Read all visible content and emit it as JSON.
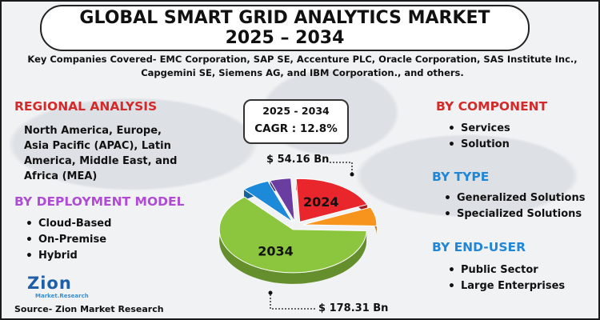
{
  "title": {
    "line1": "GLOBAL SMART GRID ANALYTICS MARKET",
    "line2": "2025 – 2034"
  },
  "companies": {
    "line1": "Key Companies Covered- EMC Corporation, SAP SE, Accenture PLC, Oracle Corporation, SAS Institute Inc.,",
    "line2": "Capgemini SE, Siemens AG, and IBM Corporation., and others."
  },
  "regional": {
    "title": "REGIONAL ANALYSIS",
    "lines": [
      "North America, Europe,",
      "Asia Pacific (APAC), Latin",
      "America, Middle East, and",
      "Africa (MEA)"
    ]
  },
  "deployment": {
    "title": "BY DEPLOYMENT MODEL",
    "items": [
      "Cloud-Based",
      "On-Premise",
      "Hybrid"
    ]
  },
  "component": {
    "title": "BY COMPONENT",
    "items": [
      "Services",
      "Solution"
    ]
  },
  "type": {
    "title": "BY TYPE",
    "items": [
      "Generalized Solutions",
      "Specialized Solutions"
    ]
  },
  "end_user": {
    "title": "BY END-USER",
    "items": [
      "Public Sector",
      "Large Enterprises"
    ]
  },
  "cagr": {
    "years": "2025 - 2034",
    "value": "CAGR : 12.8%"
  },
  "logo": {
    "main": "Zion",
    "sub": "Market.Research"
  },
  "source": "Source- Zion Market Research",
  "colors": {
    "red": "#e8262c",
    "orange": "#f7941d",
    "green": "#8cc63f",
    "blue": "#1c8ad8",
    "purple": "#6a3ea1",
    "title_red": "#d42a2a",
    "title_purple": "#b04bd6",
    "title_blue": "#1f86d8"
  },
  "chart_data": {
    "type": "pie",
    "slices": [
      {
        "label": "2024",
        "value": 54.16,
        "color": "#e8262c",
        "display": "$ 54.16 Bn"
      },
      {
        "label": "",
        "value": 20,
        "color": "#f7941d"
      },
      {
        "label": "2034",
        "value": 178.31,
        "color": "#8cc63f",
        "display": "$ 178.31 Bn"
      },
      {
        "label": "",
        "value": 17,
        "color": "#1c8ad8"
      },
      {
        "label": "",
        "value": 13,
        "color": "#6a3ea1"
      }
    ]
  }
}
